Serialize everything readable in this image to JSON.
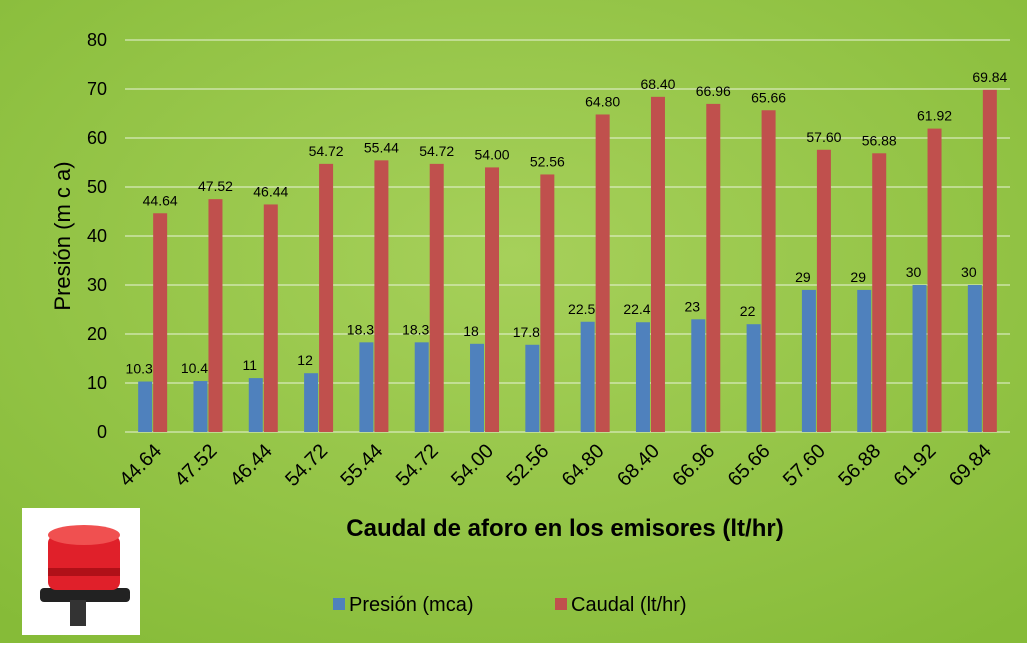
{
  "chart_data": {
    "type": "bar",
    "categories": [
      "44.64",
      "47.52",
      "46.44",
      "54.72",
      "55.44",
      "54.72",
      "54.00",
      "52.56",
      "64.80",
      "68.40",
      "66.96",
      "65.66",
      "57.60",
      "56.88",
      "61.92",
      "69.84"
    ],
    "series": [
      {
        "name": "Presión (mca)",
        "color": "#4f81bd",
        "values": [
          10.3,
          10.4,
          11,
          12,
          18.3,
          18.3,
          18,
          17.8,
          22.5,
          22.4,
          23,
          22,
          29,
          29,
          30,
          30
        ]
      },
      {
        "name": "Caudal (lt/hr)",
        "color": "#c0504d",
        "values": [
          44.64,
          47.52,
          46.44,
          54.72,
          55.44,
          54.72,
          54,
          52.56,
          64.8,
          68.4,
          66.96,
          65.66,
          57.6,
          56.88,
          61.92,
          69.84
        ],
        "value_labels": [
          "44.64",
          "47.52",
          "46.44",
          "54.72",
          "55.44",
          "54.72",
          "54.00",
          "52.56",
          "64.80",
          "68.40",
          "66.96",
          "65.66",
          "57.60",
          "56.88",
          "61.92",
          "69.84"
        ]
      }
    ],
    "y_label": "Presión (m c a)",
    "x_label": "Caudal de aforo en los emisores (lt/hr)",
    "ylim": [
      0,
      80
    ],
    "yticks": [
      0,
      10,
      20,
      30,
      40,
      50,
      60,
      70,
      80
    ],
    "grid": true,
    "legend": "bottom"
  }
}
